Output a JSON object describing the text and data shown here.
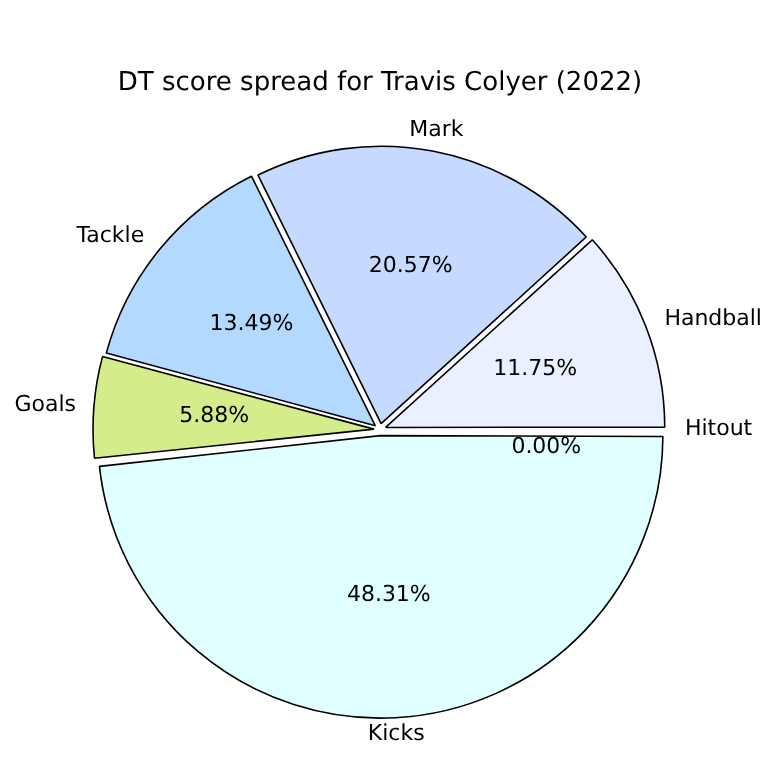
{
  "chart_data": {
    "type": "pie",
    "title": "DT score spread for Travis Colyer (2022)",
    "categories": [
      "Kicks",
      "Goals",
      "Tackle",
      "Mark",
      "Handball",
      "Hitout"
    ],
    "values": [
      48.31,
      5.88,
      13.49,
      20.57,
      11.75,
      0.0
    ],
    "value_labels": [
      "48.31%",
      "5.88%",
      "13.49%",
      "20.57%",
      "11.75%",
      "0.00%"
    ],
    "colors": [
      "#e0ffff",
      "#d4ed8a",
      "#b3d9ff",
      "#c6d9ff",
      "#eaf0ff",
      "#f0f8ff"
    ],
    "legend": false
  }
}
